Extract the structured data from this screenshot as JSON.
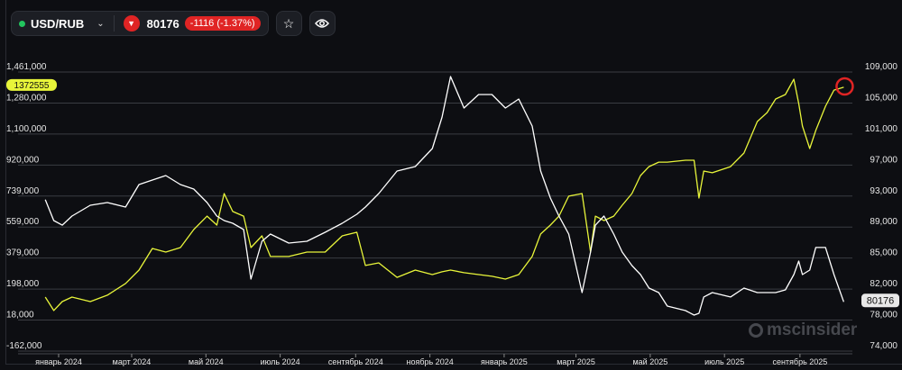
{
  "toolbar": {
    "symbol": "USD/RUB",
    "status_color": "#22c55e",
    "price": "80176",
    "change": "-1116 (-1.37%)",
    "direction_icon": "triangle-down-icon",
    "favorite_icon": "star-icon",
    "visibility_icon": "eye-icon"
  },
  "watermark": "mscinsider",
  "chart_data": {
    "type": "line",
    "grid": true,
    "left_axis": {
      "ticks": [
        "1,461,000",
        "1,280,000",
        "1,100,000",
        "920,000",
        "739,000",
        "559,000",
        "379,000",
        "198,000",
        "18,000",
        "-162,000"
      ],
      "range": [
        -162000,
        1461000
      ]
    },
    "right_axis": {
      "ticks": [
        "109,000",
        "105,000",
        "101,000",
        "97,000",
        "93,000",
        "89,000",
        "85,000",
        "82,000",
        "78,000",
        "74,000"
      ],
      "range": [
        74000,
        109000
      ]
    },
    "x_ticks": [
      "январь 2024",
      "март 2024",
      "май 2024",
      "июль 2024",
      "сентябрь 2024",
      "ноябрь 2024",
      "январь 2025",
      "март 2025",
      "май 2025",
      "июль 2025",
      "сентябрь 2025"
    ],
    "x_tick_dates": [
      "2024-01-01",
      "2024-03-01",
      "2024-05-01",
      "2024-07-01",
      "2024-09-01",
      "2024-11-01",
      "2025-01-01",
      "2025-03-01",
      "2025-05-01",
      "2025-07-01",
      "2025-09-01"
    ],
    "dates": [
      "2023-12-21",
      "2023-12-28",
      "2024-01-04",
      "2024-01-12",
      "2024-01-27",
      "2024-02-10",
      "2024-02-25",
      "2024-03-07",
      "2024-03-18",
      "2024-03-29",
      "2024-04-10",
      "2024-04-21",
      "2024-05-02",
      "2024-05-10",
      "2024-05-16",
      "2024-05-23",
      "2024-06-01",
      "2024-06-07",
      "2024-06-16",
      "2024-06-23",
      "2024-07-08",
      "2024-07-23",
      "2024-08-07",
      "2024-08-21",
      "2024-09-02",
      "2024-09-09",
      "2024-09-20",
      "2024-10-05",
      "2024-10-20",
      "2024-11-03",
      "2024-11-11",
      "2024-11-18",
      "2024-11-29",
      "2024-12-11",
      "2024-12-22",
      "2025-01-02",
      "2025-01-13",
      "2025-01-24",
      "2025-01-31",
      "2025-02-08",
      "2025-02-15",
      "2025-02-23",
      "2025-03-06",
      "2025-03-13",
      "2025-03-17",
      "2025-03-24",
      "2025-04-01",
      "2025-04-08",
      "2025-04-16",
      "2025-04-23",
      "2025-04-30",
      "2025-05-08",
      "2025-05-15",
      "2025-05-30",
      "2025-06-06",
      "2025-06-10",
      "2025-06-14",
      "2025-06-21",
      "2025-07-06",
      "2025-07-17",
      "2025-07-28",
      "2025-08-05",
      "2025-08-12",
      "2025-08-20",
      "2025-08-27",
      "2025-08-31",
      "2025-09-03",
      "2025-09-09",
      "2025-09-14",
      "2025-09-22",
      "2025-09-29",
      "2025-10-07"
    ],
    "series": [
      {
        "axis": "left",
        "color": "#e8f53a",
        "last_label": "1372555",
        "values": [
          152000,
          74000,
          126000,
          152000,
          126000,
          163000,
          231000,
          309000,
          435000,
          414000,
          440000,
          545000,
          623000,
          571000,
          754000,
          650000,
          623000,
          440000,
          508000,
          388000,
          388000,
          414000,
          414000,
          508000,
          529000,
          336000,
          351000,
          267000,
          309000,
          283000,
          299000,
          309000,
          294000,
          283000,
          273000,
          257000,
          283000,
          388000,
          519000,
          571000,
          623000,
          739000,
          754000,
          414000,
          623000,
          597000,
          623000,
          686000,
          754000,
          859000,
          911000,
          937000,
          937000,
          948000,
          948000,
          728000,
          885000,
          875000,
          911000,
          990000,
          1173000,
          1225000,
          1304000,
          1330000,
          1419000,
          1278000,
          1147000,
          1016000,
          1121000,
          1262000,
          1356000,
          1372555
        ]
      },
      {
        "axis": "right",
        "color": "#ffffff",
        "last_label": "80176",
        "values": [
          93000,
          90370,
          89800,
          90940,
          92290,
          92630,
          92070,
          94890,
          95450,
          96020,
          94890,
          94320,
          92630,
          90940,
          90370,
          90030,
          89240,
          83030,
          87770,
          88680,
          87550,
          87770,
          88900,
          90030,
          91160,
          92070,
          93760,
          96580,
          97150,
          99400,
          103360,
          108440,
          104480,
          106180,
          106180,
          104480,
          105610,
          102230,
          96580,
          93190,
          90940,
          88680,
          81340,
          86420,
          89800,
          90940,
          88680,
          86420,
          84730,
          83600,
          81900,
          81340,
          79650,
          79080,
          78520,
          78740,
          80780,
          81340,
          80780,
          81900,
          81340,
          81340,
          81340,
          81680,
          83600,
          85290,
          83600,
          84160,
          86990,
          86990,
          83600,
          80176
        ]
      }
    ],
    "annotation": {
      "type": "circle",
      "color": "#e02424",
      "date": "2025-10-07"
    }
  }
}
